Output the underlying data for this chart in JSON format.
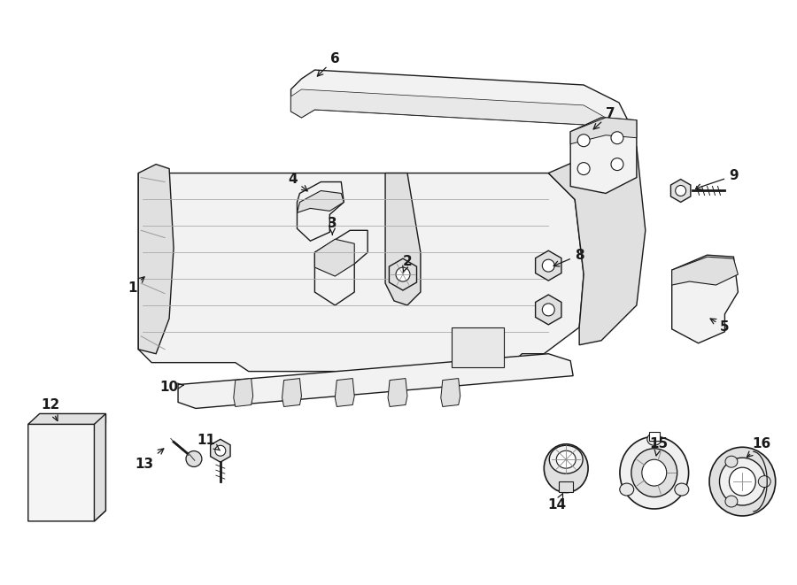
{
  "background_color": "#ffffff",
  "line_color": "#1a1a1a",
  "fill_light": "#f2f2f2",
  "fill_mid": "#e0e0e0",
  "fill_dark": "#c8c8c8",
  "lw": 1.0
}
